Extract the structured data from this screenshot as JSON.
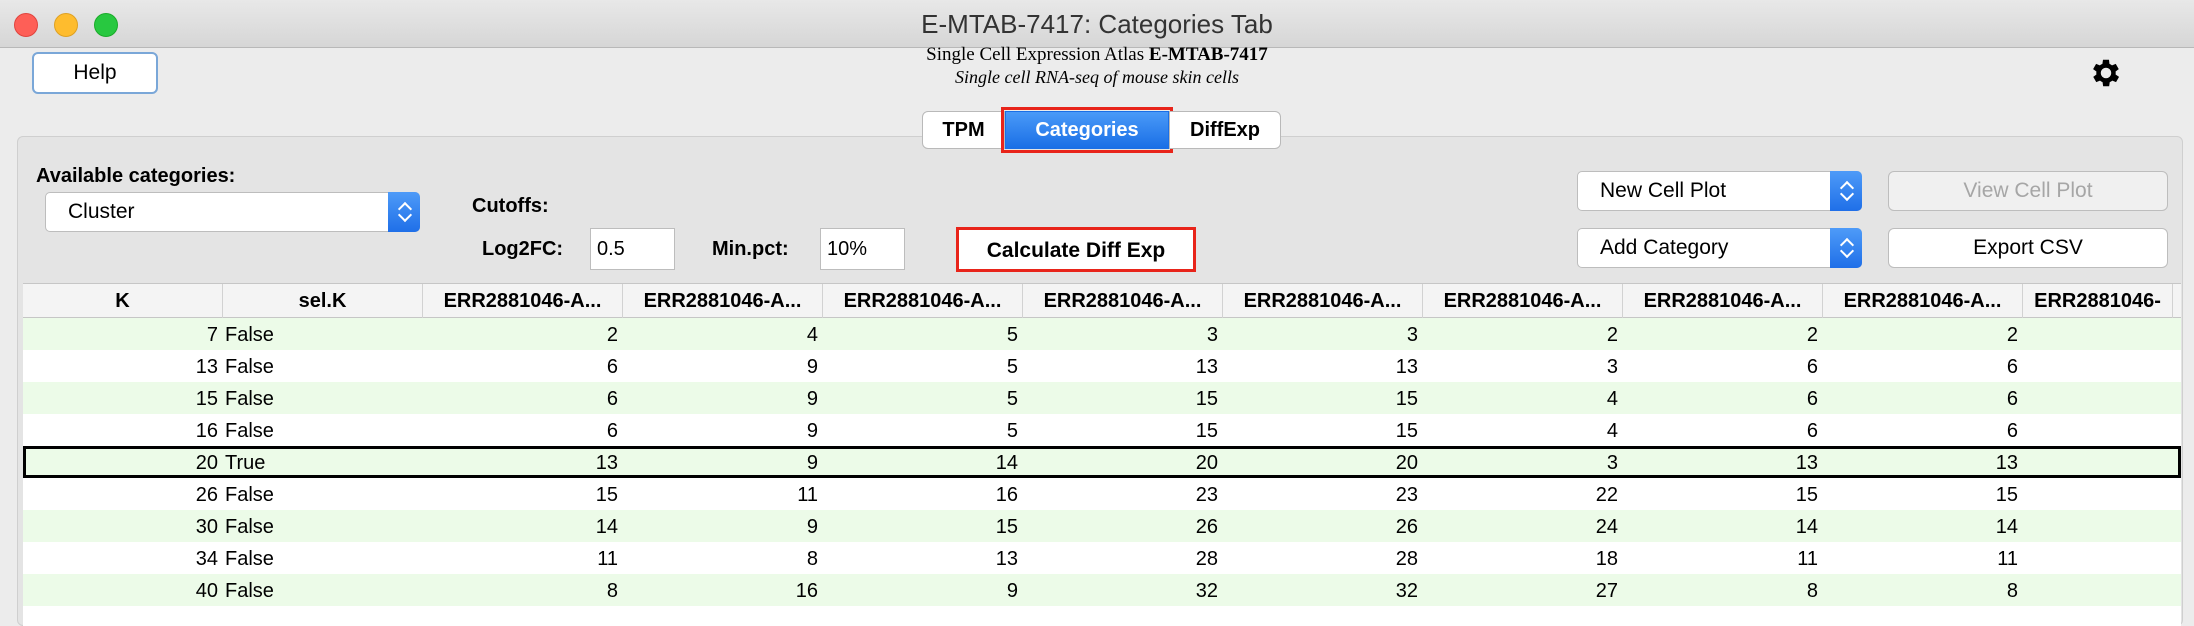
{
  "window": {
    "title": "E-MTAB-7417: Categories Tab"
  },
  "header": {
    "help_label": "Help",
    "atlas_prefix": "Single Cell Expression Atlas",
    "atlas_id": "E-MTAB-7417",
    "subtitle": "Single cell RNA-seq of mouse skin cells"
  },
  "tabs": [
    {
      "label": "TPM"
    },
    {
      "label": "Categories",
      "selected": true
    },
    {
      "label": "DiffExp"
    }
  ],
  "controls": {
    "available_label": "Available categories:",
    "category_value": "Cluster",
    "cutoffs_label": "Cutoffs:",
    "log2fc_label": "Log2FC:",
    "log2fc_value": "0.5",
    "minpct_label": "Min.pct:",
    "minpct_value": "10%",
    "calc_label": "Calculate Diff Exp",
    "new_plot_value": "New Cell Plot",
    "add_category_value": "Add Category",
    "view_plot_label": "View Cell Plot",
    "export_label": "Export CSV"
  },
  "colors": {
    "accent": "#1a6fe6",
    "highlight": "#e8241a",
    "row_alt": "#ecfbe8"
  },
  "table": {
    "headers": [
      "K",
      "sel.K",
      "ERR2881046-A...",
      "ERR2881046-A...",
      "ERR2881046-A...",
      "ERR2881046-A...",
      "ERR2881046-A...",
      "ERR2881046-A...",
      "ERR2881046-A...",
      "ERR2881046-A...",
      "ERR2881046-"
    ],
    "rows": [
      [
        "7",
        "False",
        "2",
        "4",
        "5",
        "3",
        "3",
        "2",
        "2",
        "2",
        ""
      ],
      [
        "13",
        "False",
        "6",
        "9",
        "5",
        "13",
        "13",
        "3",
        "6",
        "6",
        ""
      ],
      [
        "15",
        "False",
        "6",
        "9",
        "5",
        "15",
        "15",
        "4",
        "6",
        "6",
        ""
      ],
      [
        "16",
        "False",
        "6",
        "9",
        "5",
        "15",
        "15",
        "4",
        "6",
        "6",
        ""
      ],
      [
        "20",
        "True",
        "13",
        "9",
        "14",
        "20",
        "20",
        "3",
        "13",
        "13",
        ""
      ],
      [
        "26",
        "False",
        "15",
        "11",
        "16",
        "23",
        "23",
        "22",
        "15",
        "15",
        ""
      ],
      [
        "30",
        "False",
        "14",
        "9",
        "15",
        "26",
        "26",
        "24",
        "14",
        "14",
        ""
      ],
      [
        "34",
        "False",
        "11",
        "8",
        "13",
        "28",
        "28",
        "18",
        "11",
        "11",
        ""
      ],
      [
        "40",
        "False",
        "8",
        "16",
        "9",
        "32",
        "32",
        "27",
        "8",
        "8",
        ""
      ]
    ],
    "selected_row": 4
  }
}
